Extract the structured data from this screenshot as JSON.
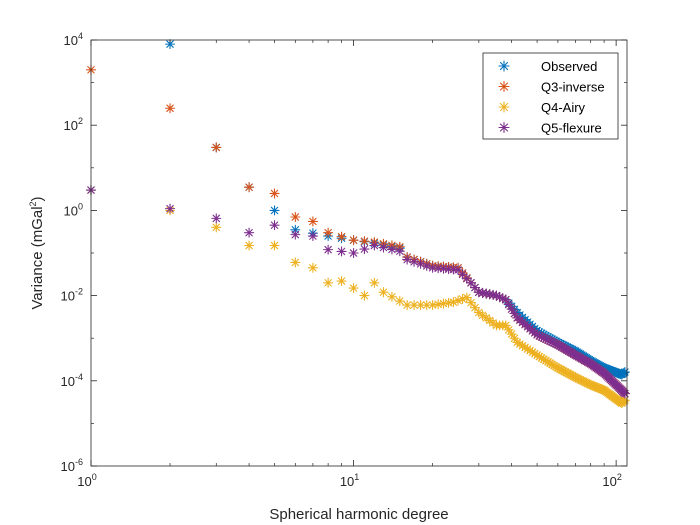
{
  "chart_data": {
    "type": "scatter",
    "title": "",
    "xlabel": "Spherical harmonic degree",
    "ylabel": {
      "main": "Variance (mGal",
      "sup": "2",
      "close": ")"
    },
    "xscale": "log",
    "yscale": "log",
    "xlim": [
      1,
      110
    ],
    "ylim": [
      1e-06,
      10000.0
    ],
    "x_ticks": [
      {
        "value": 1,
        "base": "10",
        "exp": "0"
      },
      {
        "value": 10,
        "base": "10",
        "exp": "1"
      },
      {
        "value": 100,
        "base": "10",
        "exp": "2"
      }
    ],
    "y_ticks": [
      {
        "value": 1e-06,
        "base": "10",
        "exp": "-6"
      },
      {
        "value": 0.0001,
        "base": "10",
        "exp": "-4"
      },
      {
        "value": 0.01,
        "base": "10",
        "exp": "-2"
      },
      {
        "value": 1,
        "base": "10",
        "exp": "0"
      },
      {
        "value": 100,
        "base": "10",
        "exp": "2"
      },
      {
        "value": 10000,
        "base": "10",
        "exp": "4"
      }
    ],
    "grid": false,
    "legend_position": "top-right",
    "marker": "asterisk",
    "series": [
      {
        "name": "Observed",
        "color": "#0072BD",
        "anchors": [
          [
            1,
            3
          ],
          [
            2,
            8000
          ],
          [
            3,
            30
          ],
          [
            4,
            3.5
          ],
          [
            5,
            1.0
          ],
          [
            6,
            0.35
          ],
          [
            8,
            0.25
          ],
          [
            10,
            0.2
          ],
          [
            12,
            0.17
          ],
          [
            15,
            0.13
          ],
          [
            16,
            0.08
          ],
          [
            20,
            0.05
          ],
          [
            25,
            0.045
          ],
          [
            28,
            0.02
          ],
          [
            30,
            0.012
          ],
          [
            35,
            0.01
          ],
          [
            38,
            0.008
          ],
          [
            42,
            0.004
          ],
          [
            50,
            0.0015
          ],
          [
            60,
            0.0008
          ],
          [
            70,
            0.0005
          ],
          [
            80,
            0.0003
          ],
          [
            90,
            0.0002
          ],
          [
            105,
            0.00014
          ],
          [
            108,
            0.00016
          ]
        ]
      },
      {
        "name": "Q3-inverse",
        "color": "#D95319",
        "anchors": [
          [
            1,
            2000
          ],
          [
            2,
            250
          ],
          [
            3,
            30
          ],
          [
            4,
            3.5
          ],
          [
            5,
            2.5
          ],
          [
            6,
            0.7
          ],
          [
            7,
            0.55
          ],
          [
            8,
            0.3
          ],
          [
            10,
            0.2
          ],
          [
            12,
            0.18
          ],
          [
            15,
            0.14
          ],
          [
            16,
            0.08
          ],
          [
            20,
            0.05
          ],
          [
            25,
            0.045
          ],
          [
            28,
            0.02
          ],
          [
            30,
            0.012
          ],
          [
            35,
            0.01
          ],
          [
            38,
            0.008
          ],
          [
            42,
            0.003
          ],
          [
            50,
            0.0012
          ],
          [
            60,
            0.0007
          ],
          [
            70,
            0.0004
          ],
          [
            80,
            0.00025
          ],
          [
            90,
            0.00015
          ],
          [
            105,
            6e-05
          ],
          [
            108,
            5e-05
          ]
        ]
      },
      {
        "name": "Q4-Airy",
        "color": "#EDB120",
        "anchors": [
          [
            1,
            3
          ],
          [
            2,
            1
          ],
          [
            3,
            0.4
          ],
          [
            4,
            0.15
          ],
          [
            5,
            0.15
          ],
          [
            6,
            0.06
          ],
          [
            7,
            0.045
          ],
          [
            8,
            0.02
          ],
          [
            9,
            0.022
          ],
          [
            10,
            0.015
          ],
          [
            11,
            0.01
          ],
          [
            12,
            0.02
          ],
          [
            13,
            0.012
          ],
          [
            16,
            0.006
          ],
          [
            20,
            0.006
          ],
          [
            24,
            0.007
          ],
          [
            27,
            0.009
          ],
          [
            30,
            0.004
          ],
          [
            35,
            0.002
          ],
          [
            38,
            0.002
          ],
          [
            42,
            0.0008
          ],
          [
            50,
            0.0004
          ],
          [
            60,
            0.0002
          ],
          [
            70,
            0.00012
          ],
          [
            80,
            8e-05
          ],
          [
            90,
            6e-05
          ],
          [
            105,
            3e-05
          ],
          [
            108,
            3.5e-05
          ]
        ]
      },
      {
        "name": "Q5-flexure",
        "color": "#7E2F8E",
        "anchors": [
          [
            1,
            3
          ],
          [
            2,
            1.1
          ],
          [
            3,
            0.65
          ],
          [
            4,
            0.3
          ],
          [
            5,
            0.45
          ],
          [
            6,
            0.27
          ],
          [
            7,
            0.25
          ],
          [
            8,
            0.12
          ],
          [
            10,
            0.1
          ],
          [
            12,
            0.15
          ],
          [
            15,
            0.11
          ],
          [
            16,
            0.07
          ],
          [
            20,
            0.045
          ],
          [
            25,
            0.04
          ],
          [
            28,
            0.02
          ],
          [
            30,
            0.012
          ],
          [
            35,
            0.01
          ],
          [
            38,
            0.008
          ],
          [
            42,
            0.003
          ],
          [
            50,
            0.0012
          ],
          [
            60,
            0.0007
          ],
          [
            70,
            0.0004
          ],
          [
            80,
            0.00025
          ],
          [
            90,
            0.00015
          ],
          [
            105,
            6e-05
          ],
          [
            108,
            5e-05
          ]
        ]
      }
    ]
  }
}
